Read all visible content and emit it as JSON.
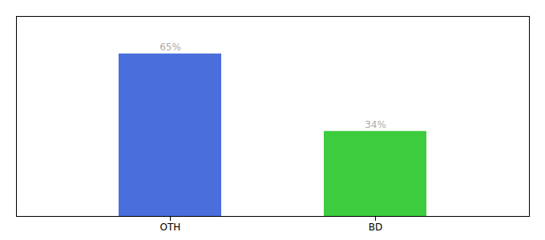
{
  "chart_data": {
    "type": "bar",
    "categories": [
      "OTH",
      "BD"
    ],
    "values": [
      65,
      34
    ],
    "value_labels": [
      "65%",
      "34%"
    ],
    "colors": [
      "#4a6edb",
      "#3dcc3d"
    ],
    "ylim": [
      0,
      80
    ],
    "data_labels": true,
    "tick_labels": "x",
    "grid": false
  }
}
